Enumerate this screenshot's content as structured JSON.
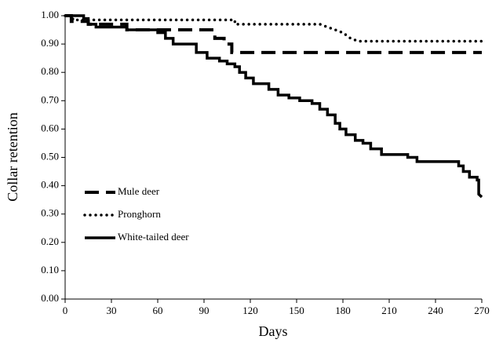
{
  "chart_data": {
    "type": "line",
    "x_label": "Days",
    "y_label": "Collar retention",
    "xlim": [
      0,
      270
    ],
    "xticks": [
      0,
      30,
      60,
      90,
      120,
      150,
      180,
      210,
      240,
      270
    ],
    "ylim": [
      0,
      1
    ],
    "yticks": [
      {
        "value": 0,
        "label": "0.00"
      },
      {
        "value": 0.1,
        "label": "0.10"
      },
      {
        "value": 0.2,
        "label": "0.20"
      },
      {
        "value": 0.3,
        "label": "0.30"
      },
      {
        "value": 0.4,
        "label": "0.40"
      },
      {
        "value": 0.5,
        "label": "0.50"
      },
      {
        "value": 0.6,
        "label": "0.60"
      },
      {
        "value": 0.7,
        "label": "0.70"
      },
      {
        "value": 0.8,
        "label": "0.80"
      },
      {
        "value": 0.9,
        "label": "0.90"
      },
      {
        "value": 1,
        "label": "1.00"
      }
    ],
    "grid": false,
    "legend": "middle-left",
    "series": [
      {
        "name": "Mule deer",
        "color": "#000000",
        "style": "dashed",
        "x": [
          0,
          4,
          4,
          15,
          15,
          40,
          40,
          97,
          97,
          103,
          103,
          108,
          108,
          270
        ],
        "values": [
          1,
          1,
          0.98,
          0.98,
          0.97,
          0.97,
          0.95,
          0.95,
          0.92,
          0.92,
          0.9,
          0.9,
          0.87,
          0.87
        ]
      },
      {
        "name": "Pronghorn",
        "color": "#000000",
        "style": "dotted",
        "x": [
          0,
          5,
          5,
          110,
          110,
          165,
          170,
          175,
          180,
          185,
          190,
          270
        ],
        "values": [
          1,
          1,
          0.985,
          0.985,
          0.97,
          0.97,
          0.96,
          0.95,
          0.94,
          0.92,
          0.91,
          0.91
        ]
      },
      {
        "name": "White-tailed deer",
        "color": "#000000",
        "style": "solid",
        "x": [
          0,
          12,
          12,
          15,
          15,
          20,
          20,
          40,
          40,
          60,
          60,
          65,
          65,
          70,
          70,
          85,
          85,
          92,
          92,
          100,
          100,
          105,
          105,
          110,
          110,
          113,
          113,
          117,
          117,
          122,
          122,
          132,
          132,
          138,
          138,
          145,
          145,
          152,
          152,
          160,
          160,
          165,
          165,
          170,
          170,
          175,
          175,
          178,
          178,
          182,
          182,
          188,
          188,
          193,
          193,
          198,
          198,
          205,
          205,
          222,
          222,
          228,
          228,
          255,
          255,
          258,
          258,
          262,
          262,
          267,
          267,
          268,
          268,
          270
        ],
        "values": [
          1,
          1,
          0.99,
          0.99,
          0.97,
          0.97,
          0.96,
          0.96,
          0.95,
          0.95,
          0.94,
          0.94,
          0.92,
          0.92,
          0.9,
          0.9,
          0.87,
          0.87,
          0.85,
          0.85,
          0.84,
          0.84,
          0.83,
          0.83,
          0.82,
          0.82,
          0.8,
          0.8,
          0.78,
          0.78,
          0.76,
          0.76,
          0.74,
          0.74,
          0.72,
          0.72,
          0.71,
          0.71,
          0.7,
          0.7,
          0.69,
          0.69,
          0.67,
          0.67,
          0.65,
          0.65,
          0.62,
          0.62,
          0.6,
          0.6,
          0.58,
          0.58,
          0.56,
          0.56,
          0.55,
          0.55,
          0.53,
          0.53,
          0.51,
          0.51,
          0.5,
          0.5,
          0.485,
          0.485,
          0.47,
          0.47,
          0.45,
          0.45,
          0.43,
          0.43,
          0.42,
          0.42,
          0.37,
          0.36
        ]
      }
    ]
  }
}
